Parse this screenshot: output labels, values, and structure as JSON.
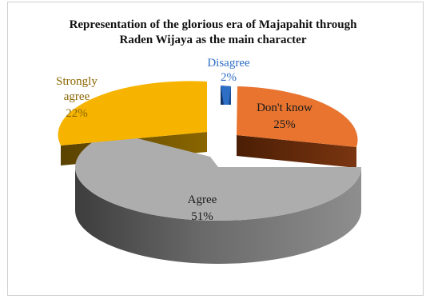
{
  "chart_data": {
    "type": "pie",
    "title_lines": [
      "Representation of the glorious era  of Majapahit through",
      "Raden Wijaya as the main character"
    ],
    "slices": [
      {
        "category": "Disagree",
        "value": 2,
        "label": "2%",
        "color": "#2e6fc6",
        "exploded": true
      },
      {
        "category": "Don't know",
        "value": 25,
        "label": "25%",
        "color": "#e8742f",
        "exploded": true
      },
      {
        "category": "Agree",
        "value": 51,
        "label": "51%",
        "color": "#a6a6a6",
        "exploded": false
      },
      {
        "category": "Strongly agree",
        "value": 22,
        "label": "22%",
        "color": "#f6b400",
        "exploded": true
      }
    ],
    "label_lines": {
      "disagree": [
        "Disagree",
        "2%"
      ],
      "dont_know": [
        "Don't know",
        "25%"
      ],
      "agree": [
        "Agree",
        "51%"
      ],
      "strongly_agree": [
        "Strongly",
        "agree",
        "22%"
      ]
    },
    "style": "3d-exploded-pie",
    "legend": "none"
  }
}
